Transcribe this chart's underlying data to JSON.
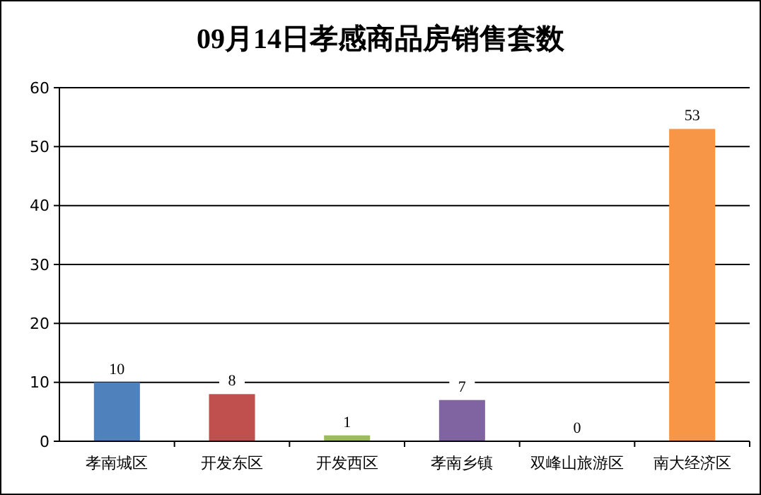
{
  "chart_data": {
    "type": "bar",
    "title": "09月14日孝感商品房销售套数",
    "categories": [
      "孝南城区",
      "开发东区",
      "开发西区",
      "孝南乡镇",
      "双峰山旅游区",
      "南大经济区"
    ],
    "values": [
      10,
      8,
      1,
      7,
      0,
      53
    ],
    "colors": [
      "#4f81bd",
      "#c0504d",
      "#9bbb59",
      "#8064a2",
      "#4bacc6",
      "#f79646"
    ],
    "ylim": [
      0,
      60
    ],
    "yticks": [
      0,
      10,
      20,
      30,
      40,
      50,
      60
    ],
    "grid": "y",
    "data_labels": true
  }
}
